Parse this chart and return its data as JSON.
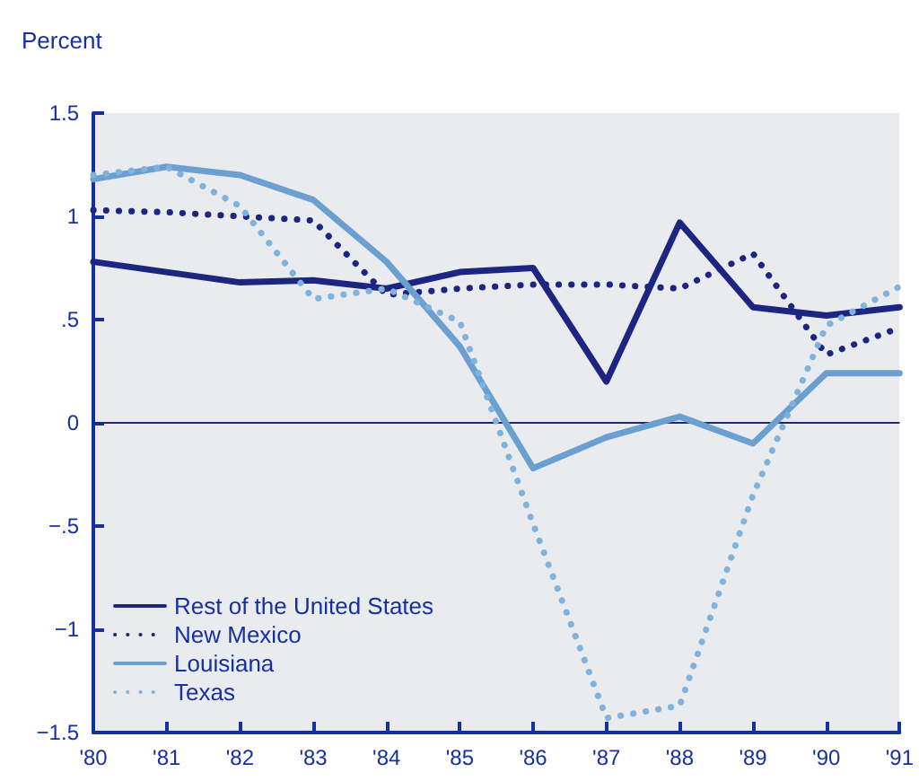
{
  "chart_data": {
    "type": "line",
    "ylabel": "Percent",
    "categories": [
      "'80",
      "'81",
      "'82",
      "'83",
      "'84",
      "'85",
      "'86",
      "'87",
      "'88",
      "'89",
      "'90",
      "'91"
    ],
    "ylim": [
      -1.5,
      1.5
    ],
    "yticks": [
      {
        "value": -1.5,
        "label": "−1.5"
      },
      {
        "value": -1,
        "label": "−1"
      },
      {
        "value": -0.5,
        "label": "−.5"
      },
      0,
      {
        "value": 0.5,
        "label": ".5"
      },
      1,
      1.5
    ],
    "series": [
      {
        "name": "Rest of the United States",
        "color": "#1c2680",
        "line_style": "solid",
        "values": [
          0.78,
          0.73,
          0.68,
          0.69,
          0.65,
          0.73,
          0.75,
          0.2,
          0.97,
          0.56,
          0.52,
          0.56
        ]
      },
      {
        "name": "New Mexico",
        "color": "#1c2680",
        "line_style": "dotted",
        "values": [
          1.03,
          1.02,
          1.0,
          0.98,
          0.62,
          0.65,
          0.67,
          0.67,
          0.65,
          0.82,
          0.33,
          0.46
        ]
      },
      {
        "name": "Louisiana",
        "color": "#6a9fd0",
        "line_style": "solid",
        "values": [
          1.18,
          1.24,
          1.2,
          1.08,
          0.78,
          0.37,
          -0.22,
          -0.07,
          0.03,
          -0.1,
          0.24,
          0.24
        ]
      },
      {
        "name": "Texas",
        "color": "#7fb2dc",
        "line_style": "dotted",
        "values": [
          1.2,
          1.24,
          1.05,
          0.6,
          0.65,
          0.49,
          -0.49,
          -1.43,
          -1.37,
          -0.35,
          0.47,
          0.66
        ]
      }
    ],
    "ref_lines": [
      {
        "axis": "y",
        "value": 0,
        "color": "#1c2680"
      }
    ],
    "legend": "bottom left",
    "grid": false,
    "marker": "none"
  }
}
